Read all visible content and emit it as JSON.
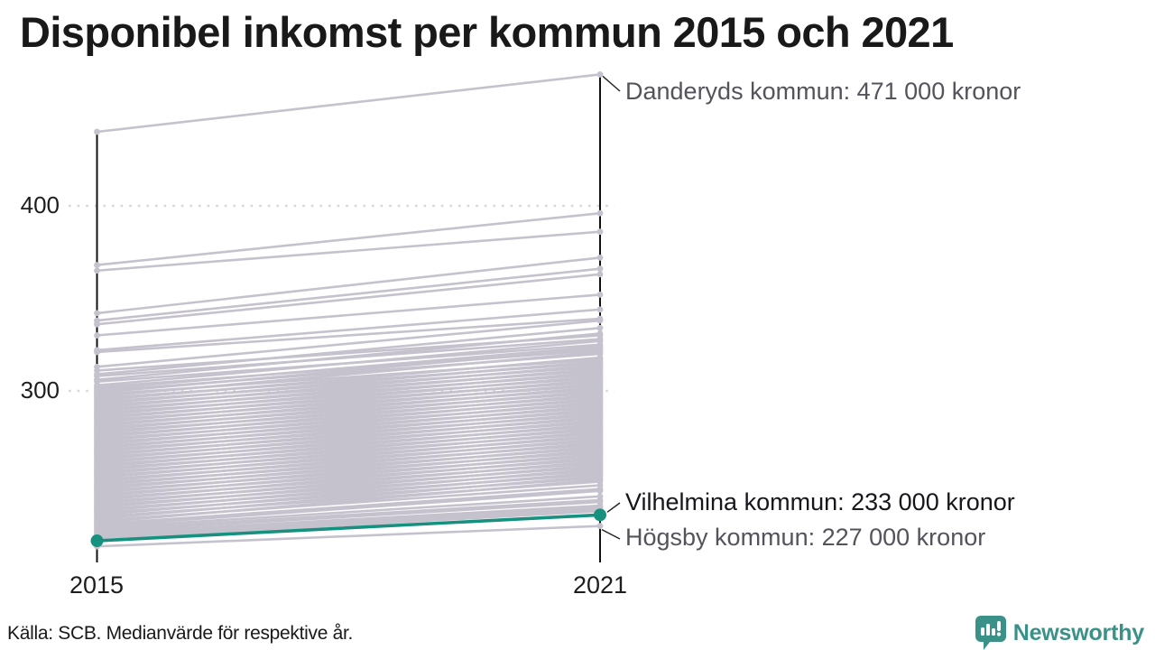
{
  "header": {
    "title": "Disponibel inkomst per kommun 2015 och 2021"
  },
  "axis": {
    "x_ticks": [
      "2015",
      "2021"
    ],
    "y_ticks": [
      "400",
      "300"
    ]
  },
  "annotations": {
    "danderyd": "Danderyds kommun: 471 000 kronor",
    "vilhelmina": "Vilhelmina kommun: 233 000 kronor",
    "hogsby": "Högsby kommun: 227 000 kronor"
  },
  "footer": {
    "source": "Källa: SCB. Medianvärde för respektive år."
  },
  "logo": {
    "name": "Newsworthy",
    "color": "#3a9188"
  },
  "colors": {
    "line_gray": "#c5c2ce",
    "highlight_teal": "#17917f",
    "grid_dots": "#d7d6dc",
    "axis_black": "#111111",
    "leader_black": "#222222"
  },
  "chart_data": {
    "type": "line",
    "subtype": "slope-chart",
    "x": [
      2015,
      2021
    ],
    "unit": "tusen kronor (median disponibel inkomst per kommun)",
    "ylim": [
      215,
      471
    ],
    "gridline_values": [
      300,
      400
    ],
    "grid": "dotted horizontal at 300 and 400",
    "legend_position": "none",
    "annotated_points": [
      {
        "name": "Danderyds kommun",
        "year": 2021,
        "value_thousand_kronor": 471
      },
      {
        "name": "Vilhelmina kommun",
        "year": 2021,
        "value_thousand_kronor": 233
      },
      {
        "name": "Högsby kommun",
        "year": 2021,
        "value_thousand_kronor": 227
      }
    ],
    "highlight_series": {
      "name": "Vilhelmina kommun",
      "values": [
        219,
        233
      ]
    },
    "hogsby_series": {
      "name": "Högsby kommun",
      "values": [
        216,
        227
      ]
    },
    "danderyd_series": {
      "name": "Danderyds kommun",
      "values": [
        440,
        471
      ]
    },
    "lines": [
      [
        440,
        471
      ],
      [
        368,
        396
      ],
      [
        365,
        386
      ],
      [
        342,
        372
      ],
      [
        338,
        366
      ],
      [
        336,
        363
      ],
      [
        330,
        352
      ],
      [
        322,
        344
      ],
      [
        321,
        339
      ],
      [
        313,
        338
      ],
      [
        311,
        330
      ],
      [
        309,
        334
      ],
      [
        308,
        328
      ],
      [
        306,
        331
      ],
      [
        305,
        325
      ],
      [
        303,
        327
      ],
      [
        302,
        322
      ],
      [
        301,
        324
      ],
      [
        300,
        320
      ],
      [
        299,
        323
      ],
      [
        298,
        317
      ],
      [
        297,
        321
      ],
      [
        296,
        315
      ],
      [
        295,
        318
      ],
      [
        294,
        313
      ],
      [
        293,
        316
      ],
      [
        292,
        311
      ],
      [
        291,
        314
      ],
      [
        290,
        309
      ],
      [
        289,
        312
      ],
      [
        288,
        307
      ],
      [
        287,
        310
      ],
      [
        286,
        305
      ],
      [
        285,
        308
      ],
      [
        284,
        303
      ],
      [
        283,
        306
      ],
      [
        282,
        301
      ],
      [
        281,
        304
      ],
      [
        280,
        299
      ],
      [
        279,
        302
      ],
      [
        278,
        297
      ],
      [
        277,
        300
      ],
      [
        276,
        295
      ],
      [
        275,
        298
      ],
      [
        274,
        293
      ],
      [
        273,
        296
      ],
      [
        272,
        291
      ],
      [
        271,
        294
      ],
      [
        270,
        289
      ],
      [
        269,
        292
      ],
      [
        268,
        287
      ],
      [
        267,
        290
      ],
      [
        266,
        285
      ],
      [
        265,
        288
      ],
      [
        264,
        283
      ],
      [
        263,
        286
      ],
      [
        262,
        281
      ],
      [
        261,
        284
      ],
      [
        260,
        279
      ],
      [
        259,
        282
      ],
      [
        258,
        277
      ],
      [
        257,
        280
      ],
      [
        256,
        275
      ],
      [
        255,
        278
      ],
      [
        254,
        273
      ],
      [
        253,
        276
      ],
      [
        252,
        271
      ],
      [
        251,
        274
      ],
      [
        250,
        269
      ],
      [
        249,
        272
      ],
      [
        248,
        267
      ],
      [
        247,
        270
      ],
      [
        246,
        265
      ],
      [
        245,
        268
      ],
      [
        244,
        263
      ],
      [
        243,
        266
      ],
      [
        242,
        261
      ],
      [
        241,
        264
      ],
      [
        240,
        259
      ],
      [
        239,
        262
      ],
      [
        238,
        257
      ],
      [
        237,
        260
      ],
      [
        236,
        255
      ],
      [
        235,
        258
      ],
      [
        234,
        253
      ],
      [
        233,
        256
      ],
      [
        232,
        251
      ],
      [
        231,
        254
      ],
      [
        230,
        249
      ],
      [
        229,
        252
      ],
      [
        228,
        247
      ],
      [
        227,
        246
      ],
      [
        226,
        243
      ],
      [
        225,
        241
      ],
      [
        224,
        240
      ],
      [
        223,
        238
      ],
      [
        222,
        237
      ],
      [
        221,
        236
      ],
      [
        220,
        235
      ],
      [
        216,
        227
      ]
    ]
  }
}
